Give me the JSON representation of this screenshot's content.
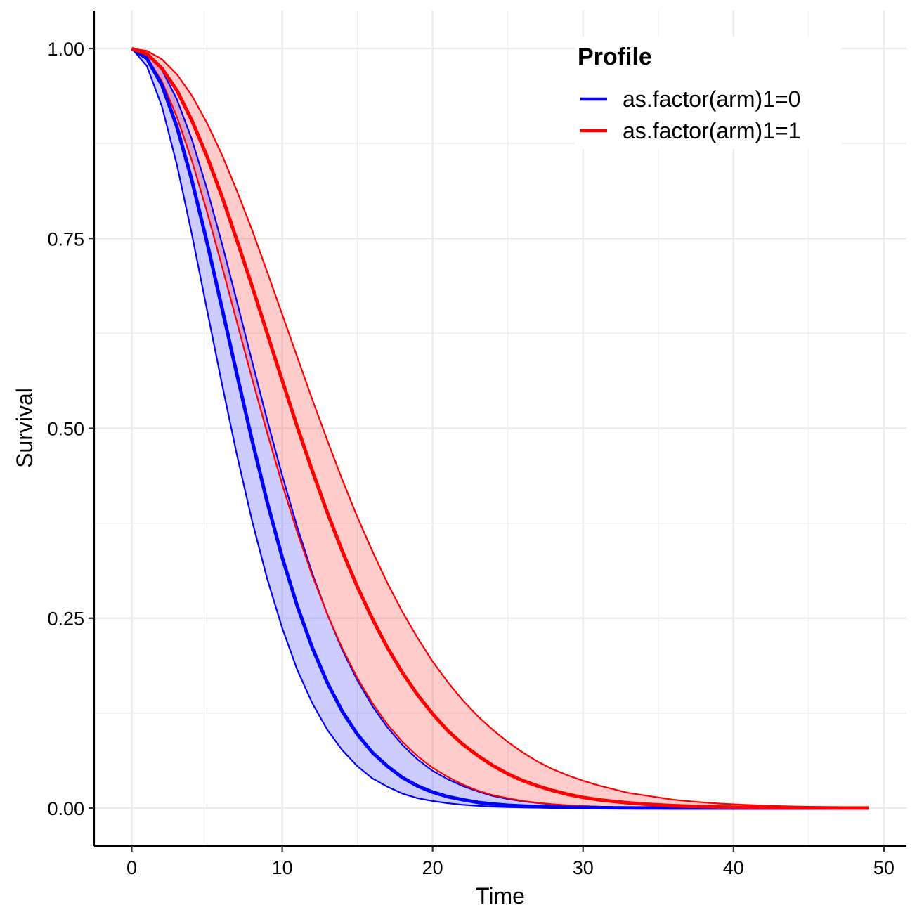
{
  "chart_data": {
    "type": "line",
    "xlabel": "Time",
    "ylabel": "Survival",
    "xlim": [
      -2.5,
      51.5
    ],
    "ylim": [
      -0.05,
      1.05
    ],
    "x_ticks": [
      0,
      10,
      20,
      30,
      40,
      50
    ],
    "x_tick_labels": [
      "0",
      "10",
      "20",
      "30",
      "40",
      "50"
    ],
    "y_ticks": [
      0,
      0.25,
      0.5,
      0.75,
      1
    ],
    "y_tick_labels": [
      "0.00",
      "0.25",
      "0.50",
      "0.75",
      "1.00"
    ],
    "grid": true,
    "legend": {
      "title": "Profile",
      "position": "top-right",
      "entries": [
        "as.factor(arm)1=0",
        "as.factor(arm)1=1"
      ]
    },
    "x": [
      0,
      1,
      2,
      3,
      4,
      5,
      6,
      7,
      8,
      9,
      10,
      11,
      12,
      13,
      14,
      15,
      16,
      17,
      18,
      19,
      20,
      21,
      22,
      23,
      24,
      25,
      26,
      27,
      28,
      29,
      30,
      31,
      32,
      33,
      34,
      35,
      36,
      37,
      38,
      39,
      40,
      41,
      42,
      43,
      44,
      45,
      46,
      47,
      48,
      49
    ],
    "series": [
      {
        "name": "as.factor(arm)1=0",
        "color": "#0000FF",
        "fill": "#0000FF",
        "values": [
          1.0,
          0.987,
          0.952,
          0.897,
          0.826,
          0.745,
          0.658,
          0.57,
          0.484,
          0.403,
          0.33,
          0.266,
          0.211,
          0.165,
          0.127,
          0.097,
          0.073,
          0.055,
          0.04,
          0.029,
          0.021,
          0.015,
          0.011,
          0.0075,
          0.0053,
          0.0037,
          0.0026,
          0.0018,
          0.0013,
          0.0009,
          0.0006,
          0.0004,
          0.0003,
          0.0002,
          0.0001,
          0.0001,
          0,
          0,
          0,
          0,
          0,
          0,
          0,
          0,
          0,
          0,
          0,
          0,
          0,
          0
        ],
        "lower": [
          1.0,
          0.977,
          0.924,
          0.847,
          0.755,
          0.656,
          0.558,
          0.464,
          0.378,
          0.302,
          0.237,
          0.182,
          0.138,
          0.103,
          0.076,
          0.055,
          0.039,
          0.028,
          0.019,
          0.013,
          0.0093,
          0.0064,
          0.0043,
          0.0029,
          0.0019,
          0.0012,
          0.0008,
          0.0005,
          0.0003,
          0.0002,
          0.0001,
          0.0001,
          0,
          0,
          0,
          0,
          0,
          0,
          0,
          0,
          0,
          0,
          0,
          0,
          0,
          0,
          0,
          0,
          0,
          0
        ],
        "upper": [
          1.0,
          0.994,
          0.972,
          0.933,
          0.88,
          0.815,
          0.743,
          0.666,
          0.588,
          0.511,
          0.438,
          0.37,
          0.309,
          0.255,
          0.208,
          0.168,
          0.134,
          0.106,
          0.083,
          0.064,
          0.049,
          0.038,
          0.029,
          0.022,
          0.016,
          0.012,
          0.009,
          0.0066,
          0.0048,
          0.0035,
          0.0025,
          0.0018,
          0.0013,
          0.0009,
          0.0006,
          0.0004,
          0.0003,
          0.0002,
          0.0001,
          0.0001,
          0,
          0,
          0,
          0,
          0,
          0,
          0,
          0,
          0,
          0
        ]
      },
      {
        "name": "as.factor(arm)1=1",
        "color": "#FF0000",
        "fill": "#FF0000",
        "values": [
          1.0,
          0.993,
          0.974,
          0.945,
          0.905,
          0.858,
          0.805,
          0.747,
          0.687,
          0.625,
          0.563,
          0.502,
          0.444,
          0.389,
          0.338,
          0.291,
          0.249,
          0.211,
          0.178,
          0.149,
          0.124,
          0.102,
          0.084,
          0.069,
          0.056,
          0.045,
          0.036,
          0.029,
          0.023,
          0.018,
          0.014,
          0.011,
          0.0088,
          0.0069,
          0.0053,
          0.0041,
          0.0032,
          0.0024,
          0.0019,
          0.0014,
          0.0011,
          0.0008,
          0.0006,
          0.0005,
          0.0004,
          0.0003,
          0.0002,
          0.0001,
          0.0001,
          0.0001
        ],
        "lower": [
          1.0,
          0.988,
          0.957,
          0.91,
          0.852,
          0.785,
          0.713,
          0.639,
          0.565,
          0.494,
          0.426,
          0.363,
          0.306,
          0.255,
          0.21,
          0.171,
          0.138,
          0.11,
          0.087,
          0.068,
          0.053,
          0.041,
          0.031,
          0.023,
          0.017,
          0.013,
          0.0094,
          0.0069,
          0.005,
          0.0036,
          0.0026,
          0.0018,
          0.0013,
          0.0009,
          0.0006,
          0.0004,
          0.0003,
          0.0002,
          0.0001,
          0.0001,
          0.0001,
          0,
          0,
          0,
          0,
          0,
          0,
          0,
          0,
          0
        ],
        "upper": [
          1.0,
          0.997,
          0.986,
          0.966,
          0.938,
          0.902,
          0.86,
          0.812,
          0.761,
          0.706,
          0.65,
          0.594,
          0.538,
          0.484,
          0.432,
          0.383,
          0.338,
          0.296,
          0.258,
          0.224,
          0.193,
          0.166,
          0.142,
          0.121,
          0.103,
          0.087,
          0.073,
          0.061,
          0.051,
          0.043,
          0.036,
          0.03,
          0.025,
          0.02,
          0.017,
          0.014,
          0.011,
          0.0091,
          0.0074,
          0.006,
          0.0049,
          0.004,
          0.0032,
          0.0026,
          0.0021,
          0.0017,
          0.0014,
          0.0011,
          0.0009,
          0.0007
        ]
      }
    ]
  }
}
